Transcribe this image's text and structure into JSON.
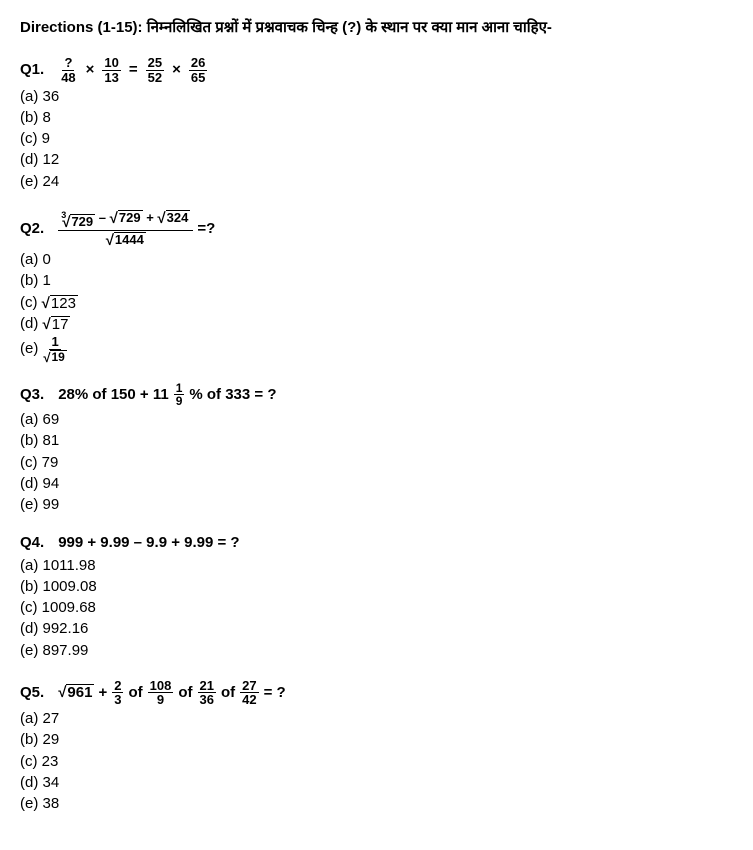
{
  "directions": "Directions (1-15): निम्नलिखित प्रश्नों में प्रश्नवाचक चिन्ह (?) के स्थान पर क्या मान आना चाहिए-",
  "q1": {
    "label": "Q1.",
    "f1n": "?",
    "f1d": "48",
    "f2n": "10",
    "f2d": "13",
    "f3n": "25",
    "f3d": "52",
    "f4n": "26",
    "f4d": "65",
    "opts": {
      "a": "(a) 36",
      "b": "(b) 8",
      "c": "(c) 9",
      "d": "(d) 12",
      "e": "(e) 24"
    }
  },
  "q2": {
    "label": "Q2.",
    "idx": "3",
    "r1": "729",
    "r2": "729",
    "r3": "324",
    "r4": "1444",
    "tail": " =?",
    "opts": {
      "a": "(a) 0",
      "b": "(b) 1",
      "c_pre": "(c) ",
      "c_rad": "123",
      "d_pre": "(d) ",
      "d_rad": "17",
      "e_pre": "(e) ",
      "e_num": "1",
      "e_den_rad": "19"
    }
  },
  "q3": {
    "label": "Q3.",
    "p1": "28% of 150 + 11",
    "fn": "1",
    "fd": "9",
    "p2": "% of 333 = ?",
    "opts": {
      "a": "(a) 69",
      "b": "(b) 81",
      "c": "(c) 79",
      "d": "(d) 94",
      "e": "(e) 99"
    }
  },
  "q4": {
    "label": "Q4.",
    "expr": "999 + 9.99 – 9.9 + 9.99 = ?",
    "opts": {
      "a": "(a) 1011.98",
      "b": "(b) 1009.08",
      "c": "(c) 1009.68",
      "d": "(d) 992.16",
      "e": "(e) 897.99"
    }
  },
  "q5": {
    "label": "Q5.",
    "r": "961",
    "plus": " + ",
    "f1n": "2",
    "f1d": "3",
    "of": " of ",
    "f2n": "108",
    "f2d": "9",
    "f3n": "21",
    "f3d": "36",
    "f4n": "27",
    "f4d": "42",
    "tail": " = ?",
    "opts": {
      "a": "(a) 27",
      "b": "(b) 29",
      "c": "(c) 23",
      "d": "(d) 34",
      "e": "(e) 38"
    }
  }
}
